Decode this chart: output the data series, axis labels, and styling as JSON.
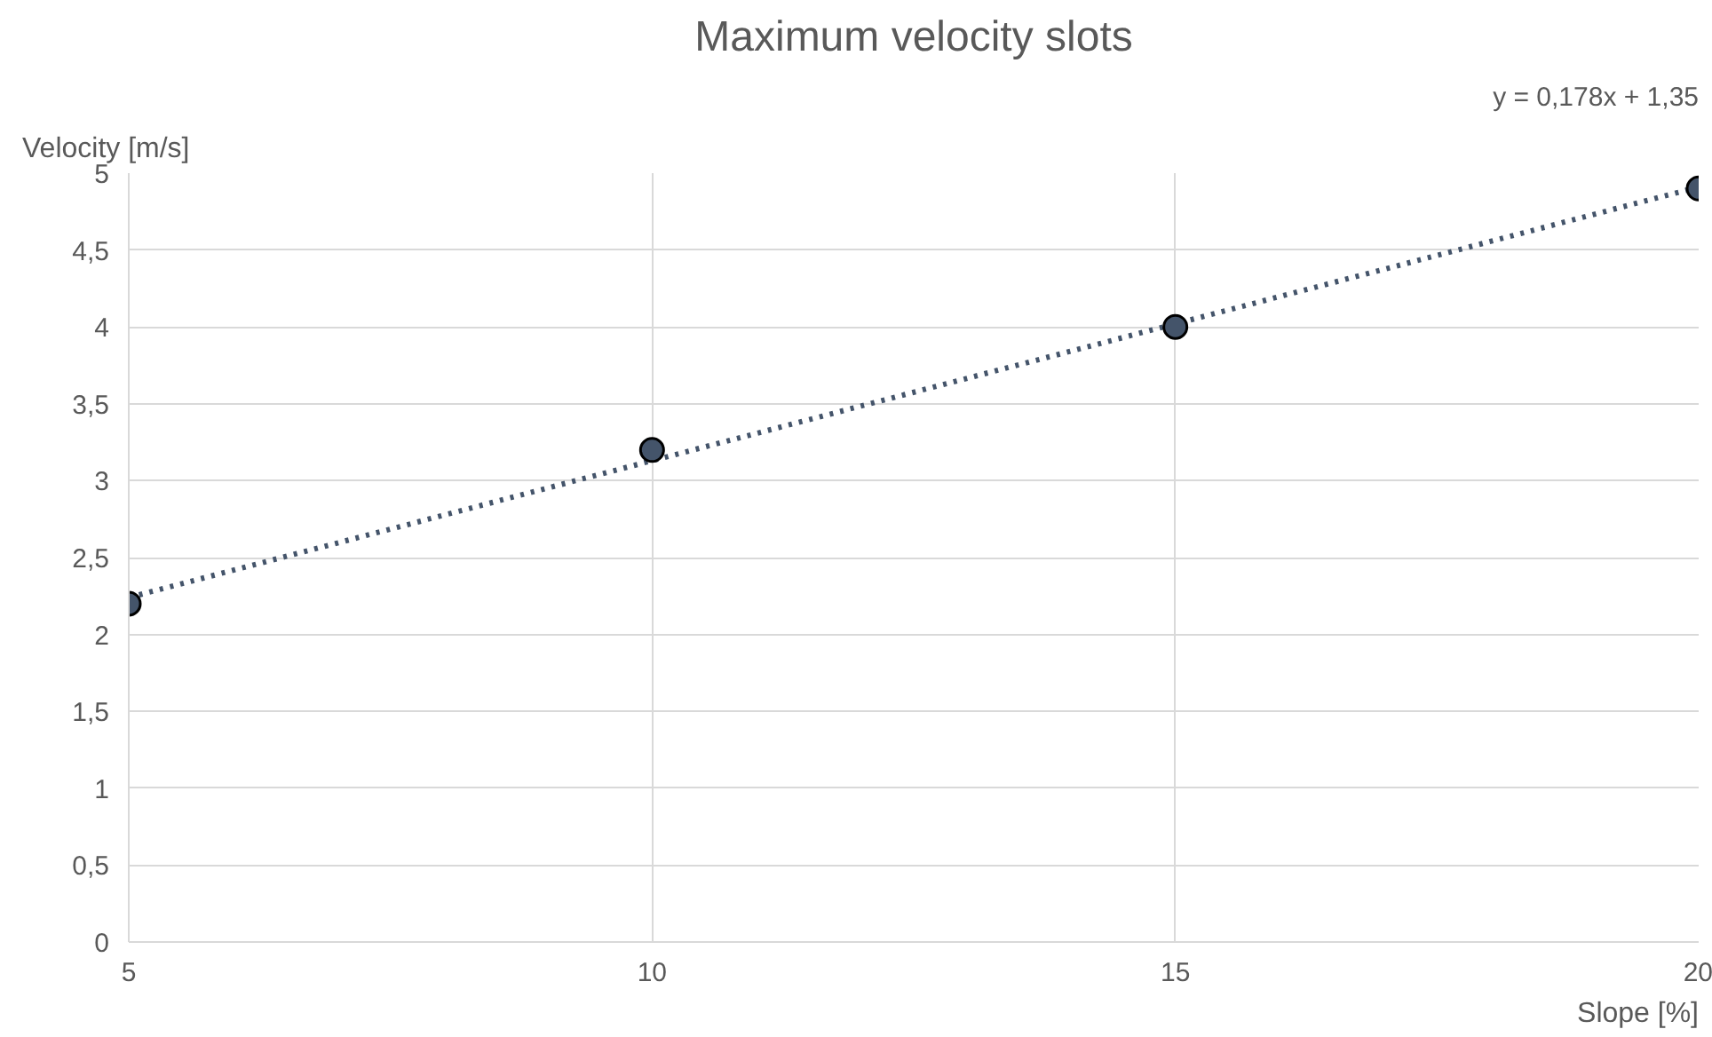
{
  "chart_data": {
    "type": "scatter",
    "title": "Maximum velocity slots",
    "xlabel": "Slope [%]",
    "ylabel": "Velocity [m/s]",
    "annotations": [
      "y = 0,178x + 1,35"
    ],
    "x": [
      5,
      10,
      15,
      20
    ],
    "series": [
      {
        "color": "#44546a",
        "values": [
          2.2,
          3.2,
          4.0,
          4.9
        ],
        "marker": "circle"
      },
      {
        "type": "line",
        "color": "#44546a",
        "x": [
          5,
          20
        ],
        "values": [
          2.24,
          4.91
        ],
        "line_style": "dotted",
        "marker": "none"
      }
    ],
    "xlim": [
      5,
      20
    ],
    "xticks": [
      5,
      10,
      15,
      20
    ],
    "ylim": [
      0,
      5
    ],
    "yticks": [
      0,
      {
        "value": 0.5,
        "label": "0,5"
      },
      1,
      {
        "value": 1.5,
        "label": "1,5"
      },
      2,
      {
        "value": 2.5,
        "label": "2,5"
      },
      3,
      {
        "value": 3.5,
        "label": "3,5"
      },
      4,
      {
        "value": 4.5,
        "label": "4,5"
      },
      5
    ],
    "grid": true
  }
}
